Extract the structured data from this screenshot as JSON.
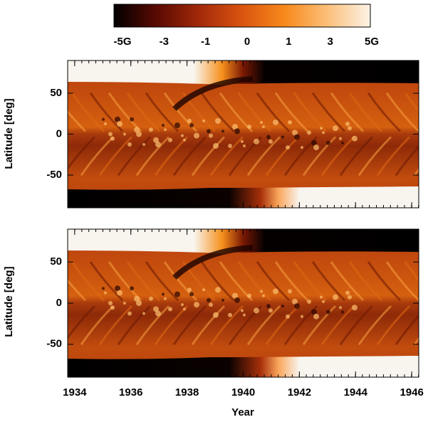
{
  "chart_data": [
    {
      "type": "heatmap",
      "ylabel": "Latitude [deg]",
      "xlim": [
        1933.75,
        1946.25
      ],
      "xticks": [
        1934,
        1936,
        1938,
        1940,
        1942,
        1944,
        1946
      ],
      "ylim": [
        -90,
        90
      ],
      "yticks": [
        50,
        0,
        -50
      ],
      "colorbar": {
        "colors": [
          "#000000",
          "#5a0a02",
          "#a3290a",
          "#d9540f",
          "#f88a1c",
          "#fbbf7a",
          "#fdf3e6"
        ],
        "ticks": [
          {
            "value": -5,
            "label": "-5G"
          },
          -3,
          -1,
          0,
          1,
          3,
          {
            "value": 5,
            "label": "5G"
          }
        ]
      }
    },
    {
      "type": "heatmap",
      "ylabel": "Latitude [deg]",
      "xlabel": "Year",
      "xlim": [
        1933.75,
        1946.25
      ],
      "xticks": [
        1934,
        1936,
        1938,
        1940,
        1942,
        1944,
        1946
      ],
      "ylim": [
        -90,
        90
      ],
      "yticks": [
        50,
        0,
        -50
      ]
    }
  ]
}
